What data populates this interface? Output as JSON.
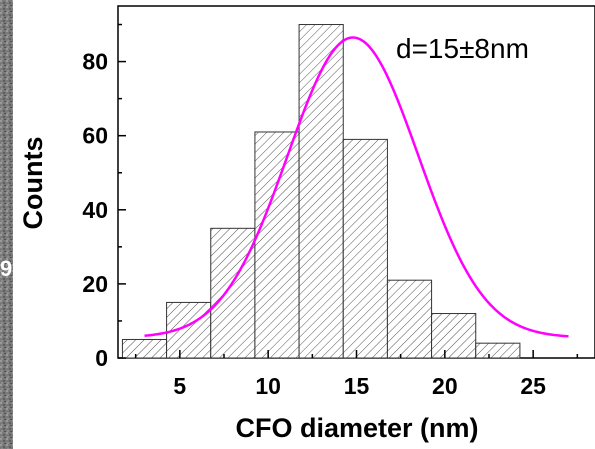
{
  "chart_data": {
    "type": "bar",
    "xlabel": "CFO diameter (nm)",
    "ylabel": "Counts",
    "annotation": "d=15±8nm",
    "xlim": [
      1.5,
      28.5
    ],
    "ylim": [
      0,
      95
    ],
    "x_ticks": [
      5,
      10,
      15,
      20,
      25
    ],
    "y_ticks": [
      0,
      20,
      40,
      60,
      80
    ],
    "bar_width": 2.5,
    "bars": [
      {
        "x": 3.0,
        "value": 5
      },
      {
        "x": 5.5,
        "value": 15
      },
      {
        "x": 8.0,
        "value": 35
      },
      {
        "x": 10.5,
        "value": 61
      },
      {
        "x": 13.0,
        "value": 90
      },
      {
        "x": 15.5,
        "value": 59
      },
      {
        "x": 18.0,
        "value": 21
      },
      {
        "x": 20.5,
        "value": 12
      },
      {
        "x": 23.0,
        "value": 4
      }
    ],
    "fit": {
      "type": "gaussian",
      "color": "#ff00ff",
      "baseline": 5.5,
      "amplitude": 81,
      "center": 14.8,
      "sigma": 3.7,
      "x_range": [
        3,
        27
      ]
    },
    "bar_fill": "hatched",
    "grid": false
  },
  "stray_label": "9"
}
